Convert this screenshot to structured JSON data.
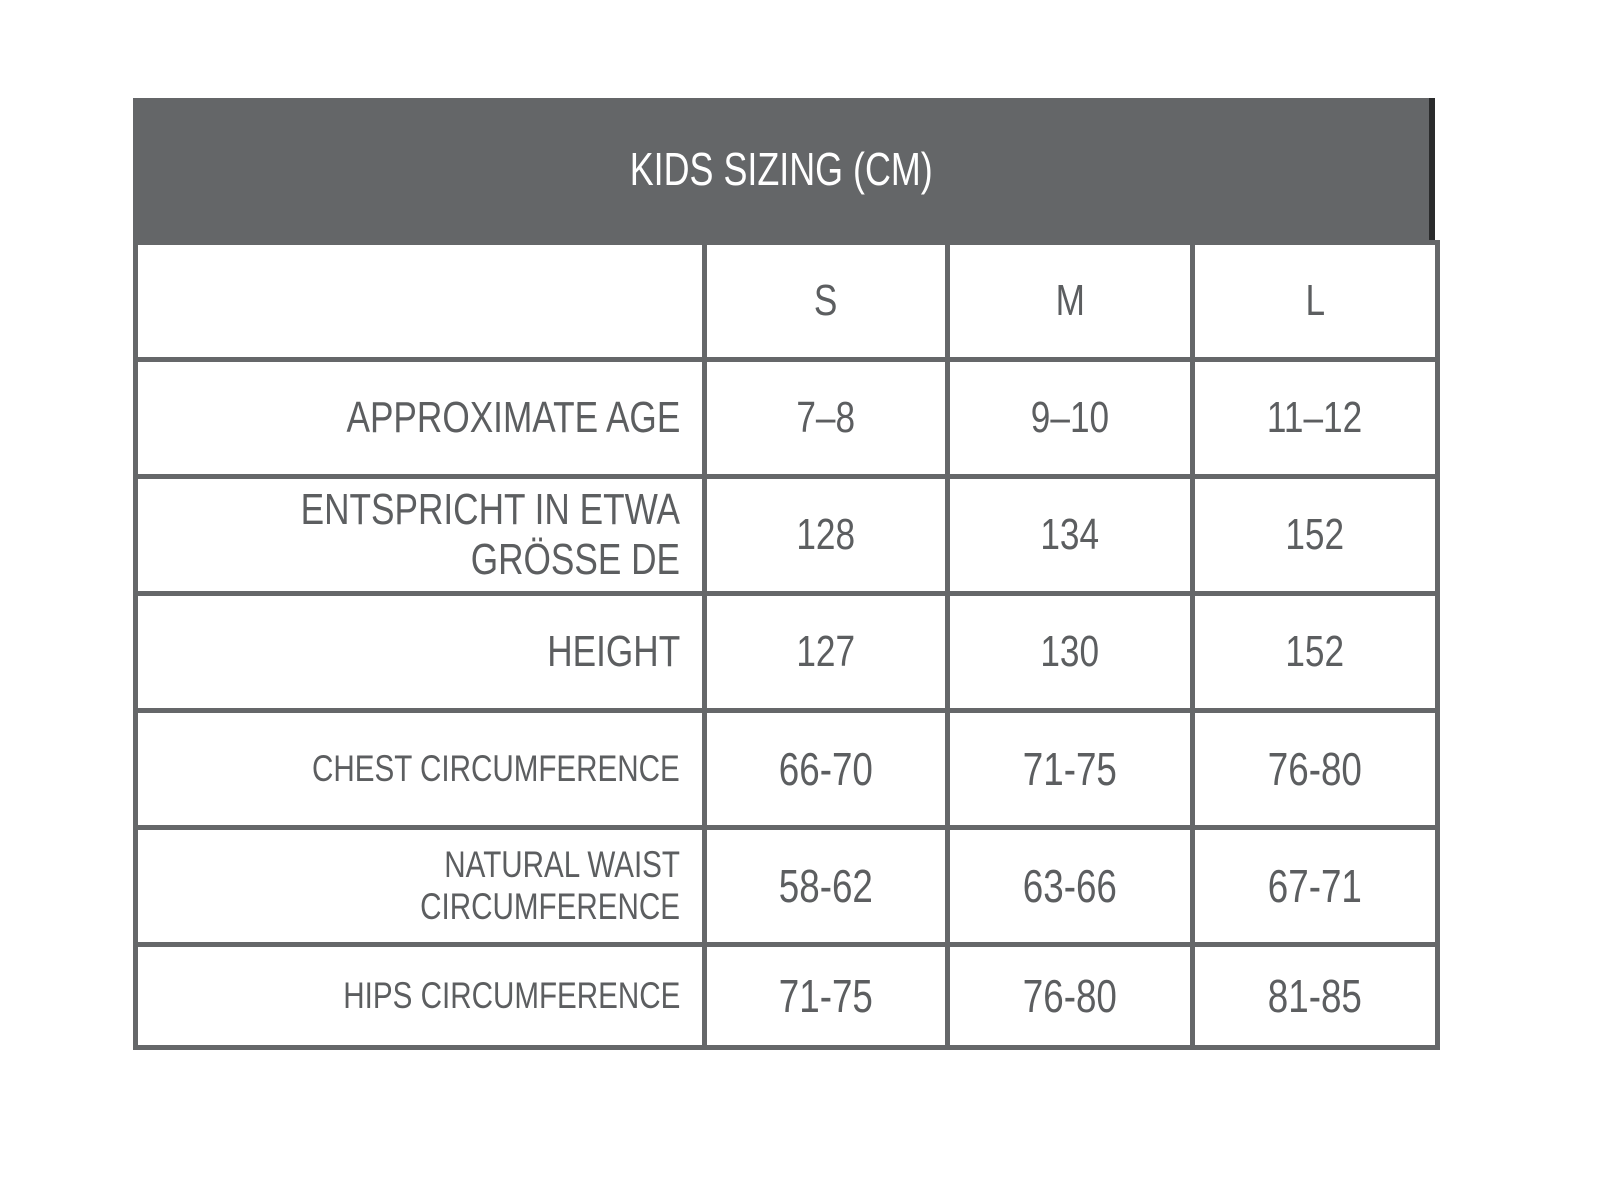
{
  "title": "KIDS SIZING (CM)",
  "columns": [
    "",
    "S",
    "M",
    "L"
  ],
  "rows": [
    {
      "label": "APPROXIMATE AGE",
      "values": [
        "7–8",
        "9–10",
        "11–12"
      ]
    },
    {
      "label": "ENTSPRICHT IN ETWA GRÖSSE DE",
      "values": [
        "128",
        "134",
        "152"
      ]
    },
    {
      "label": "HEIGHT",
      "values": [
        "127",
        "130",
        "152"
      ]
    },
    {
      "label": "CHEST CIRCUMFERENCE",
      "values": [
        "66-70",
        "71-75",
        "76-80"
      ]
    },
    {
      "label": "NATURAL WAIST CIRCUMFERENCE",
      "values": [
        "58-62",
        "63-66",
        "67-71"
      ]
    },
    {
      "label": "HIPS CIRCUMFERENCE",
      "values": [
        "71-75",
        "76-80",
        "81-85"
      ]
    }
  ],
  "colors": {
    "header_bg": "#646668",
    "border": "#656769",
    "text": "#5c5e60"
  }
}
